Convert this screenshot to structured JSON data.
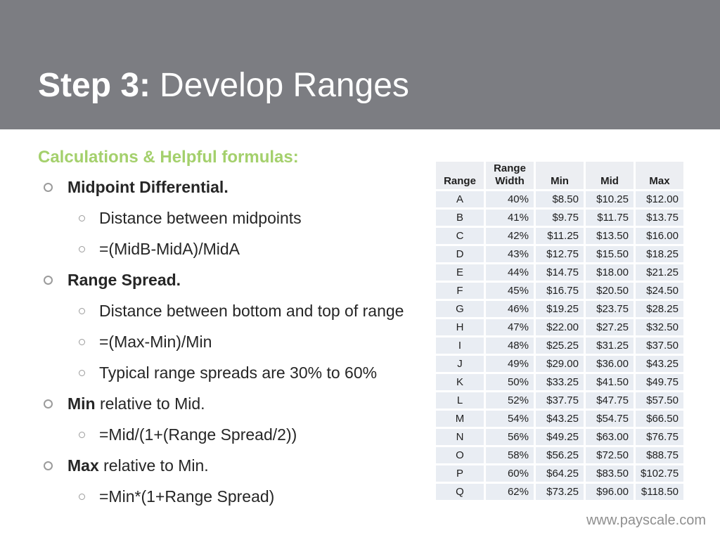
{
  "colors": {
    "header_band_gray": "#7c7d82",
    "accent_green": "#a4d06c",
    "table_cell_bg": "#e9edf3",
    "footer_gray": "#8f8f8f",
    "title_white": "#ffffff",
    "body_text": "#262626"
  },
  "header": {
    "title_bold": "Step 3:",
    "title_regular": "Develop Ranges"
  },
  "content": {
    "heading": "Calculations & Helpful formulas:",
    "bullets": [
      {
        "level": 1,
        "bold": "Midpoint Differential.",
        "text": ""
      },
      {
        "level": 2,
        "bold": "",
        "text": "Distance between midpoints"
      },
      {
        "level": 2,
        "bold": "",
        "text": "=(MidB-MidA)/MidA"
      },
      {
        "level": 1,
        "bold": "Range Spread.",
        "text": ""
      },
      {
        "level": 2,
        "bold": "",
        "text": "Distance between bottom and top of range"
      },
      {
        "level": 2,
        "bold": "",
        "text": "=(Max-Min)/Min"
      },
      {
        "level": 2,
        "bold": "",
        "text": "Typical range spreads are 30% to 60%"
      },
      {
        "level": 1,
        "bold": "Min",
        "text": " relative to Mid."
      },
      {
        "level": 2,
        "bold": "",
        "text": "=Mid/(1+(Range Spread/2))"
      },
      {
        "level": 1,
        "bold": "Max",
        "text": " relative to Min."
      },
      {
        "level": 2,
        "bold": "",
        "text": "=Min*(1+Range Spread)"
      }
    ]
  },
  "table": {
    "headers": [
      "Range",
      "Range Width",
      "Min",
      "Mid",
      "Max"
    ],
    "rows": [
      [
        "A",
        "40%",
        "$8.50",
        "$10.25",
        "$12.00"
      ],
      [
        "B",
        "41%",
        "$9.75",
        "$11.75",
        "$13.75"
      ],
      [
        "C",
        "42%",
        "$11.25",
        "$13.50",
        "$16.00"
      ],
      [
        "D",
        "43%",
        "$12.75",
        "$15.50",
        "$18.25"
      ],
      [
        "E",
        "44%",
        "$14.75",
        "$18.00",
        "$21.25"
      ],
      [
        "F",
        "45%",
        "$16.75",
        "$20.50",
        "$24.50"
      ],
      [
        "G",
        "46%",
        "$19.25",
        "$23.75",
        "$28.25"
      ],
      [
        "H",
        "47%",
        "$22.00",
        "$27.25",
        "$32.50"
      ],
      [
        "I",
        "48%",
        "$25.25",
        "$31.25",
        "$37.50"
      ],
      [
        "J",
        "49%",
        "$29.00",
        "$36.00",
        "$43.25"
      ],
      [
        "K",
        "50%",
        "$33.25",
        "$41.50",
        "$49.75"
      ],
      [
        "L",
        "52%",
        "$37.75",
        "$47.75",
        "$57.50"
      ],
      [
        "M",
        "54%",
        "$43.25",
        "$54.75",
        "$66.50"
      ],
      [
        "N",
        "56%",
        "$49.25",
        "$63.00",
        "$76.75"
      ],
      [
        "O",
        "58%",
        "$56.25",
        "$72.50",
        "$88.75"
      ],
      [
        "P",
        "60%",
        "$64.25",
        "$83.50",
        "$102.75"
      ],
      [
        "Q",
        "62%",
        "$73.25",
        "$96.00",
        "$118.50"
      ]
    ]
  },
  "footer": {
    "url_text": "www.payscale.com"
  }
}
